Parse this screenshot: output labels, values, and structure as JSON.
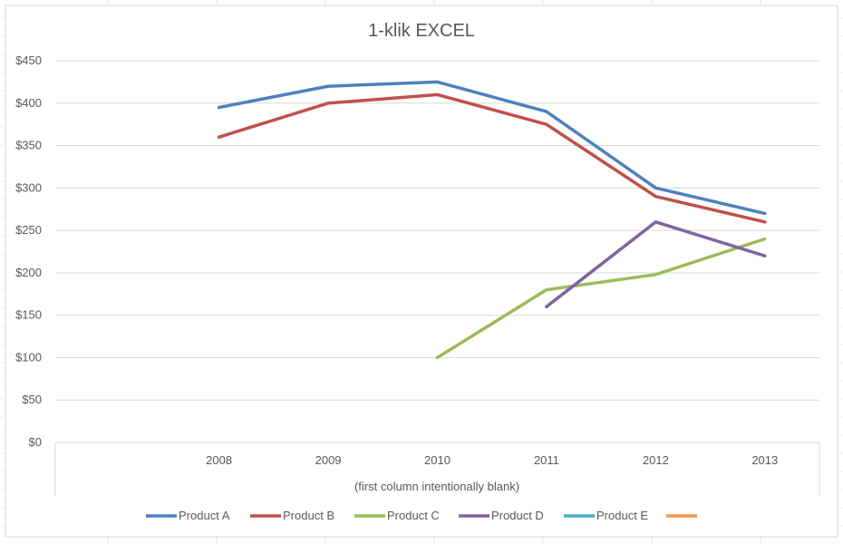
{
  "chart_data": {
    "type": "line",
    "title": "1-klik EXCEL",
    "xlabel": "(first column intentionally blank)",
    "ylabel": "",
    "categories": [
      "",
      "2008",
      "2009",
      "2010",
      "2011",
      "2012",
      "2013"
    ],
    "ylim": [
      0,
      450
    ],
    "yticks": [
      "$0",
      "$50",
      "$100",
      "$150",
      "$200",
      "$250",
      "$300",
      "$350",
      "$400",
      "$450"
    ],
    "ytick_values": [
      0,
      50,
      100,
      150,
      200,
      250,
      300,
      350,
      400,
      450
    ],
    "grid": true,
    "legend_position": "bottom",
    "series": [
      {
        "name": "Product A",
        "color": "#4F81BD",
        "values": [
          null,
          395,
          420,
          425,
          390,
          300,
          270
        ]
      },
      {
        "name": "Product B",
        "color": "#C0504D",
        "values": [
          null,
          360,
          400,
          410,
          375,
          290,
          260
        ]
      },
      {
        "name": "Product C",
        "color": "#9BBB59",
        "values": [
          null,
          null,
          null,
          100,
          180,
          198,
          240
        ]
      },
      {
        "name": "Product D",
        "color": "#8064A2",
        "values": [
          null,
          null,
          null,
          null,
          160,
          260,
          220
        ]
      },
      {
        "name": "Product E",
        "color": "#4BACC6",
        "values": [
          null,
          null,
          null,
          null,
          null,
          null,
          null
        ]
      },
      {
        "name": "",
        "color": "#F79646",
        "values": [
          null,
          null,
          null,
          null,
          null,
          null,
          null
        ]
      }
    ]
  }
}
